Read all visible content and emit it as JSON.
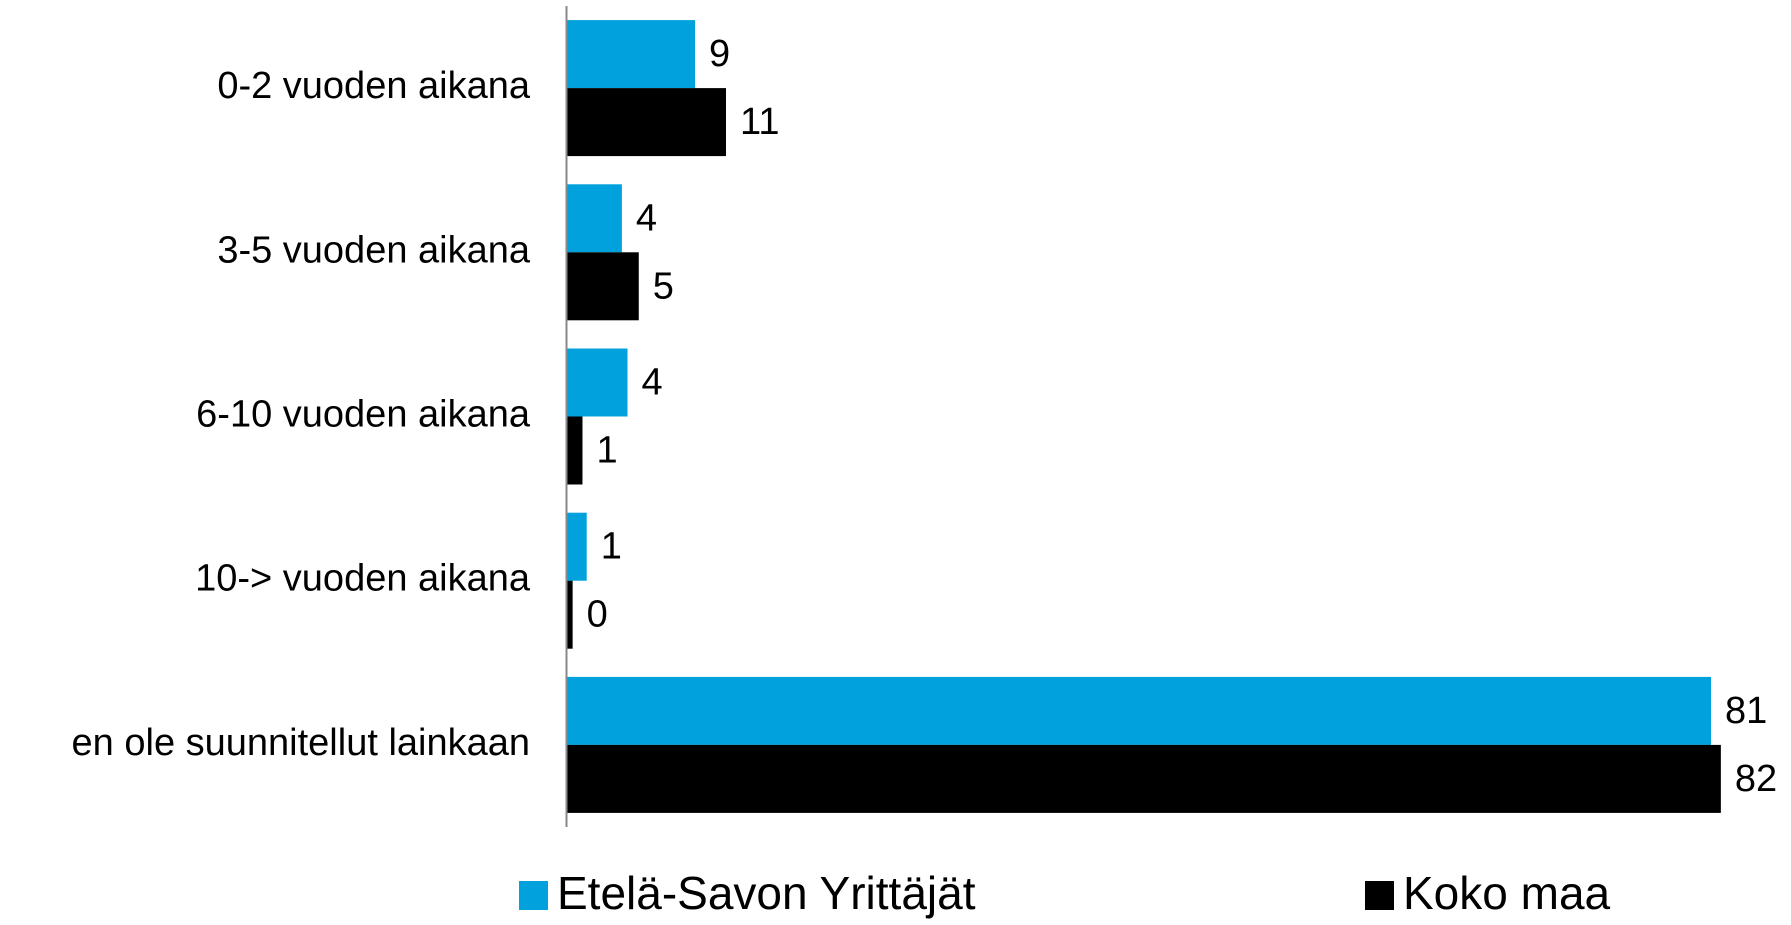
{
  "chart_data": {
    "type": "bar",
    "orientation": "horizontal",
    "categories": [
      "0-2 vuoden aikana",
      "3-5 vuoden aikana",
      "6-10 vuoden aikana",
      "10-> vuoden aikana",
      "en ole suunnitellut lainkaan"
    ],
    "series": [
      {
        "name": "Etelä-Savon Yrittäjät",
        "color": "#00a1dc",
        "values": [
          9.1,
          3.9,
          4.3,
          1.4,
          81.3
        ],
        "value_labels": [
          "9",
          "4",
          "4",
          "1",
          "81"
        ]
      },
      {
        "name": "Koko maa",
        "color": "#000000",
        "values": [
          11.3,
          5.1,
          1.1,
          0.4,
          82
        ],
        "value_labels": [
          "11",
          "5",
          "1",
          "0",
          "82"
        ]
      }
    ],
    "xlim": [
      0,
      84
    ],
    "legend": "bottom"
  }
}
